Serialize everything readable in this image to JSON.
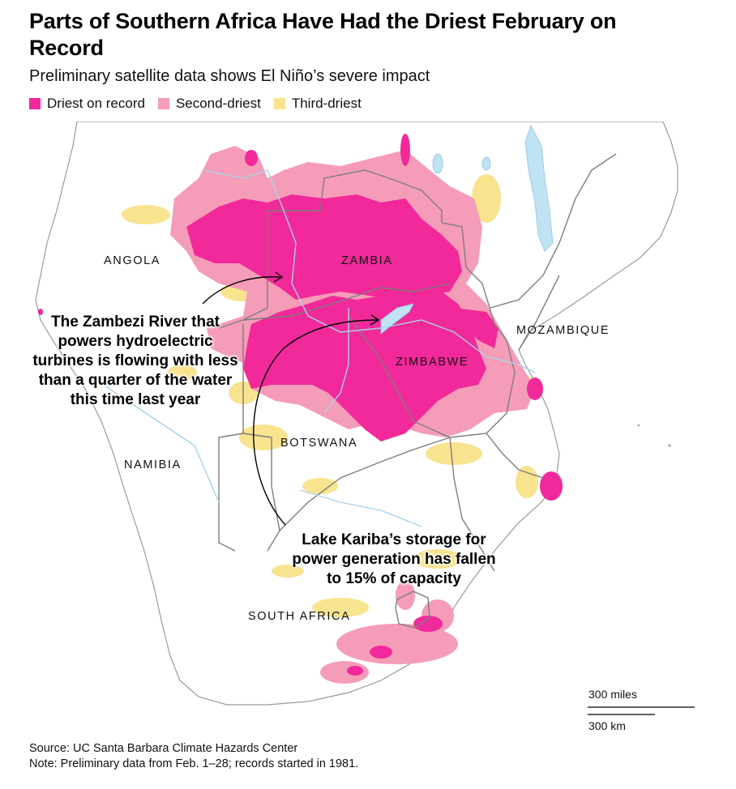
{
  "header": {
    "title": "Parts of Southern Africa Have Had the Driest February on Record",
    "subtitle": "Preliminary satellite data shows El Niño’s severe impact"
  },
  "legend": [
    {
      "label": "Driest on record",
      "color": "#f2299a"
    },
    {
      "label": "Second-driest",
      "color": "#f59cb8"
    },
    {
      "label": "Third-driest",
      "color": "#f8e38f"
    }
  ],
  "map": {
    "country_labels": {
      "angola": "ANGOLA",
      "zambia": "ZAMBIA",
      "mozambique": "MOZAMBIQUE",
      "zimbabwe": "ZIMBABWE",
      "botswana": "BOTSWANA",
      "namibia": "NAMIBIA",
      "south_africa": "SOUTH AFRICA"
    },
    "annotations": {
      "zambezi": "The Zambezi River that powers hydroelectric turbines is flowing with less than a quarter of the water this time last year",
      "kariba": "Lake Kariba’s storage for power generation has fallen to 15% of capacity"
    },
    "scale": {
      "miles": "300 miles",
      "km": "300 km"
    },
    "colors": {
      "land": "#ffffff",
      "border": "#8a8a8a",
      "water": "#bfe3f3",
      "coast": "#9a9a9a"
    }
  },
  "footer": {
    "source": "Source: UC Santa Barbara Climate Hazards Center",
    "note": "Note: Preliminary data from Feb. 1–28; records started in 1981."
  }
}
